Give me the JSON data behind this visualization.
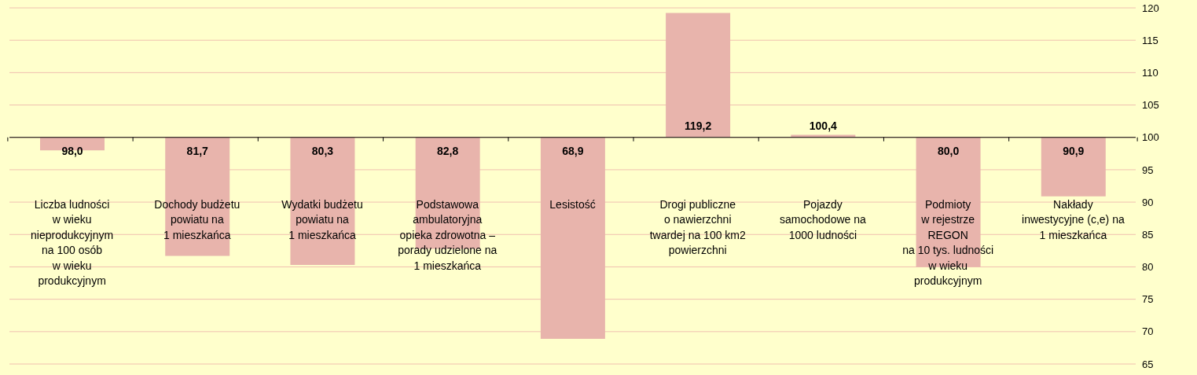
{
  "chart_data": {
    "type": "bar",
    "categories": [
      "Liczba ludności\nw wieku\nnieprodukcyjnym\nna 100 osób\nw wieku\nprodukcyjnym",
      "Dochody budżetu\npowiatu na\n1 mieszkańca",
      "Wydatki budżetu\npowiatu na\n1 mieszkańca",
      "Podstawowa\nambulatoryjna\nopieka zdrowotna –\nporady udzielone na\n1 mieszkańca",
      "Lesistość",
      "Drogi publiczne\no nawierzchni\ntwardej na 100 km2\npowierzchni",
      "Pojazdy\nsamochodowe na\n1000 ludności",
      "Podmioty\nw rejestrze\nREGON\nna 10 tys. ludności\nw wieku\nprodukcyjnym",
      "Nakłady\ninwestycyjne (c,e) na\n1 mieszkańca"
    ],
    "base": [
      100,
      100,
      100,
      100,
      100,
      100,
      100,
      100,
      100
    ],
    "values": [
      -2.0,
      -18.3,
      -19.7,
      -17.2,
      -31.1,
      19.2,
      0.4,
      -20.0,
      -9.1
    ],
    "value_labels": [
      "98,0",
      "81,7",
      "80,3",
      "82,8",
      "68,9",
      "119,2",
      "100,4",
      "80,0",
      "90,9"
    ],
    "color": "#e8b4ac",
    "ylim": [
      65,
      120
    ],
    "yticks": [
      65,
      70,
      75,
      80,
      85,
      90,
      95,
      100,
      105,
      110,
      115,
      120
    ],
    "grid": "y",
    "ref_lines": [
      {
        "axis": "y",
        "value": 100,
        "color": "#000000"
      }
    ]
  }
}
